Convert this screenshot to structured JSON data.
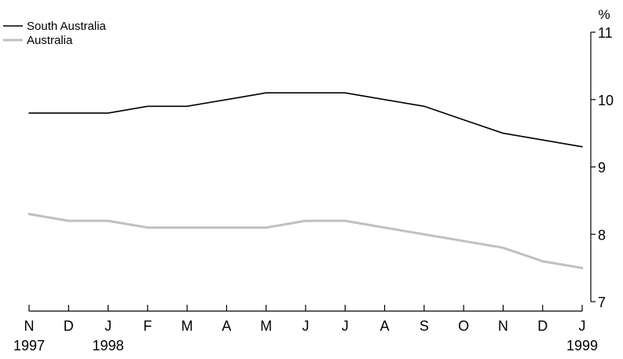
{
  "chart_data": {
    "type": "line",
    "title": "",
    "xlabel": "",
    "ylabel": "%",
    "x": [
      "N",
      "D",
      "J",
      "F",
      "M",
      "A",
      "M",
      "J",
      "J",
      "A",
      "S",
      "O",
      "N",
      "D",
      "J"
    ],
    "year_labels": [
      {
        "index": 0,
        "label": "1997"
      },
      {
        "index": 2,
        "label": "1998"
      },
      {
        "index": 14,
        "label": "1999"
      }
    ],
    "ylim": [
      7,
      11
    ],
    "yticks": [
      "7",
      "8",
      "9",
      "10",
      "11"
    ],
    "y_axis_side": "right",
    "grid": false,
    "legend_position": "top-left",
    "series": [
      {
        "name": "South Australia",
        "color": "#000000",
        "values": [
          9.8,
          9.8,
          9.8,
          9.9,
          9.9,
          10.0,
          10.1,
          10.1,
          10.1,
          10.0,
          9.9,
          9.7,
          9.5,
          9.4,
          9.3
        ]
      },
      {
        "name": "Australia",
        "color": "#c0c0c0",
        "values": [
          8.3,
          8.2,
          8.2,
          8.1,
          8.1,
          8.1,
          8.1,
          8.2,
          8.2,
          8.1,
          8.0,
          7.9,
          7.8,
          7.6,
          7.5
        ]
      }
    ]
  }
}
